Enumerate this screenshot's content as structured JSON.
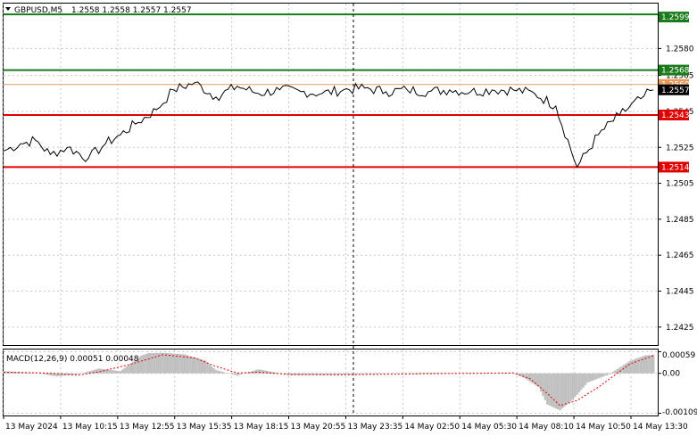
{
  "header": {
    "symbol": "GBPUSD,M5",
    "ohlc": "1.2558 1.2558 1.2557 1.2557"
  },
  "colors": {
    "resistance_line": "#1b7a1b",
    "support_line": "#e00000",
    "bid_line": "#e89a5a",
    "price_line": "#000000",
    "macd_histogram": "#c0c0c0",
    "macd_signal": "#e00000",
    "grid": "#c8c8c8"
  },
  "chart_data": [
    {
      "type": "line",
      "panel": "price",
      "symbol": "GBPUSD",
      "timeframe": "M5",
      "ylim": [
        1.2415,
        1.2605
      ],
      "y_ticks": [
        "1.2580",
        "1.2565",
        "1.2545",
        "1.2525",
        "1.2505",
        "1.2485",
        "1.2465",
        "1.2445",
        "1.2425"
      ],
      "x_ticks": [
        "13 May 2024",
        "13 May 10:15",
        "13 May 12:55",
        "13 May 15:35",
        "13 May 18:15",
        "13 May 20:55",
        "13 May 23:35",
        "14 May 02:50",
        "14 May 05:30",
        "14 May 08:10",
        "14 May 10:50",
        "14 May 13:30"
      ],
      "x_index_range": [
        0,
        308
      ],
      "series": [
        {
          "x": [
            0,
            8,
            15,
            22,
            30,
            40,
            48,
            55,
            62,
            72,
            80,
            90,
            100,
            110,
            120,
            130,
            140,
            150,
            160,
            170,
            180,
            190,
            200,
            210,
            220,
            230,
            240,
            250,
            260,
            270,
            280,
            290,
            300,
            306
          ],
          "y": [
            1.2523,
            1.2527,
            1.2529,
            1.2521,
            1.2525,
            1.2519,
            1.2527,
            1.2532,
            1.2538,
            1.2546,
            1.2557,
            1.2561,
            1.2553,
            1.2559,
            1.2555,
            1.2557,
            1.2556,
            1.2555,
            1.2557,
            1.2558,
            1.2556,
            1.2557,
            1.2556,
            1.2557,
            1.2556,
            1.2557,
            1.2557,
            1.2555,
            1.2548,
            1.2514,
            1.2532,
            1.2543,
            1.2552,
            1.2557
          ]
        }
      ],
      "levels": [
        {
          "label": "1.2599",
          "value": 1.2599,
          "role": "resistance"
        },
        {
          "label": "1.2568",
          "value": 1.2568,
          "role": "resistance"
        },
        {
          "label": "1.2560",
          "value": 1.256,
          "role": "bid"
        },
        {
          "label": "1.2557",
          "value": 1.2557,
          "role": "current"
        },
        {
          "label": "1.2543",
          "value": 1.2543,
          "role": "support"
        },
        {
          "label": "1.2514",
          "value": 1.2514,
          "role": "support"
        }
      ],
      "vertical_marker_x": 154,
      "grid": true
    },
    {
      "type": "area",
      "panel": "indicator",
      "title": "MACD(12,26,9) 0.00051 0.00048",
      "ylim": [
        -0.00115,
        0.00065
      ],
      "y_ticks": [
        "0.00059",
        "0.00",
        "-0.00109"
      ],
      "series": [
        {
          "name": "histogram",
          "x": [
            0,
            15,
            25,
            35,
            45,
            55,
            65,
            68,
            75,
            85,
            95,
            100,
            110,
            120,
            135,
            150,
            165,
            180,
            200,
            220,
            240,
            245,
            252,
            256,
            262,
            268,
            275,
            285,
            295,
            302,
            306
          ],
          "y": [
            6e-05,
            1e-05,
            -8e-05,
            -3e-05,
            0.00013,
            6e-05,
            0.00049,
            0.00055,
            0.00056,
            0.00052,
            0.00035,
            9e-05,
            -6e-05,
            0.00011,
            -5e-05,
            -4e-05,
            -3e-05,
            -1e-05,
            2e-05,
            -1e-05,
            1e-05,
            -0.00012,
            -0.00038,
            -0.00085,
            -0.00101,
            -0.00072,
            -0.00025,
            -3e-05,
            0.00034,
            0.00049,
            0.00051
          ]
        },
        {
          "name": "signal",
          "x": [
            0,
            20,
            35,
            45,
            60,
            75,
            90,
            100,
            110,
            120,
            135,
            160,
            200,
            240,
            248,
            256,
            262,
            270,
            280,
            295,
            306
          ],
          "y": [
            3e-05,
            1e-05,
            -5e-05,
            4e-05,
            0.00025,
            0.00051,
            0.00042,
            0.00019,
            1e-05,
            3e-05,
            -3e-05,
            -4e-05,
            -1e-05,
            1e-05,
            -0.00015,
            -0.00055,
            -0.00088,
            -0.00074,
            -0.00038,
            0.00026,
            0.00048
          ]
        }
      ],
      "grid": true
    }
  ]
}
